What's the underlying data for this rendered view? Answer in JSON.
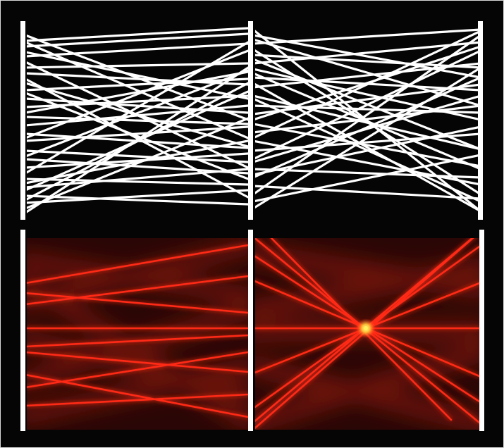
{
  "figure": {
    "background_color": "#050505",
    "frame_color": "#d9d9d9",
    "mirror_color": "#ffffff",
    "ray_color": "#ffffff",
    "glow_color": "#ff2a14",
    "focus_color": "#fff35a",
    "panels": [
      {
        "id": "top-left",
        "kind": "ray-trace"
      },
      {
        "id": "top-right",
        "kind": "ray-trace"
      },
      {
        "id": "bottom-left",
        "kind": "intensity-map"
      },
      {
        "id": "bottom-right",
        "kind": "intensity-map",
        "has_focus_spot": true
      }
    ]
  }
}
